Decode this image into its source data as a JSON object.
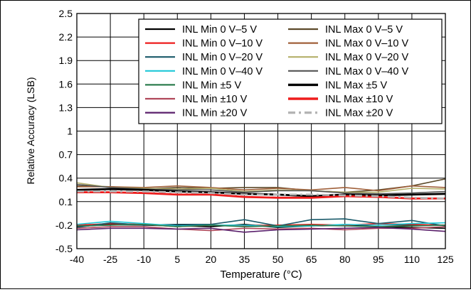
{
  "chart_data": {
    "type": "line",
    "title": "",
    "xlabel": "Temperature (°C)",
    "ylabel": "Relative Accuracy (LSB)",
    "xlim": [
      -40,
      125
    ],
    "ylim": [
      -0.5,
      2.5
    ],
    "x_ticks": [
      -40,
      -25,
      -10,
      5,
      20,
      35,
      50,
      65,
      80,
      95,
      110,
      125
    ],
    "x_tick_labels": [
      "-40",
      "-25",
      "-10",
      "5",
      "20",
      "35",
      "50",
      "65",
      "80",
      "95",
      "110",
      "125"
    ],
    "y_ticks": [
      -0.5,
      -0.2,
      0.1,
      0.4,
      0.7,
      1,
      1.3,
      1.6,
      1.9,
      2.2,
      2.5
    ],
    "y_tick_labels": [
      "-0.5",
      "-0.2",
      "0.1",
      "0.4",
      "0.7",
      "1",
      "1.3",
      "1.6",
      "1.9",
      "2.2",
      "2.5"
    ],
    "grid": true,
    "legend_position": "top-right",
    "x": [
      -40,
      -25,
      -10,
      5,
      20,
      35,
      50,
      65,
      80,
      95,
      110,
      125
    ],
    "series": [
      {
        "name": "INL Min 0 V–5 V",
        "color": "#000000",
        "style": "solid",
        "width": 1.6,
        "values": [
          -0.22,
          -0.19,
          -0.2,
          -0.21,
          -0.22,
          -0.19,
          -0.23,
          -0.21,
          -0.2,
          -0.22,
          -0.23,
          -0.24
        ]
      },
      {
        "name": "INL Min 0 V–10 V",
        "color": "#ee1c1c",
        "style": "solid",
        "width": 1.6,
        "values": [
          -0.2,
          -0.18,
          -0.19,
          -0.22,
          -0.2,
          -0.21,
          -0.2,
          -0.19,
          -0.2,
          -0.18,
          -0.19,
          -0.2
        ]
      },
      {
        "name": "INL Min 0 V–20 V",
        "color": "#1a5a6a",
        "style": "solid",
        "width": 1.6,
        "values": [
          -0.23,
          -0.17,
          -0.2,
          -0.19,
          -0.19,
          -0.13,
          -0.21,
          -0.13,
          -0.12,
          -0.18,
          -0.14,
          -0.21
        ]
      },
      {
        "name": "INL Min 0 V–40 V",
        "color": "#1ec8d8",
        "style": "solid",
        "width": 1.6,
        "values": [
          -0.19,
          -0.15,
          -0.18,
          -0.21,
          -0.2,
          -0.2,
          -0.22,
          -0.21,
          -0.19,
          -0.2,
          -0.18,
          -0.17
        ]
      },
      {
        "name": "INL Min ±5 V",
        "color": "#2e7d4f",
        "style": "solid",
        "width": 1.6,
        "values": [
          -0.21,
          -0.2,
          -0.19,
          -0.22,
          -0.2,
          -0.22,
          -0.21,
          -0.2,
          -0.21,
          -0.22,
          -0.21,
          -0.2
        ]
      },
      {
        "name": "INL Min ±10 V",
        "color": "#b0485a",
        "style": "solid",
        "width": 1.6,
        "values": [
          -0.24,
          -0.22,
          -0.22,
          -0.25,
          -0.27,
          -0.24,
          -0.25,
          -0.24,
          -0.26,
          -0.24,
          -0.24,
          -0.22
        ]
      },
      {
        "name": "INL Min ±20 V",
        "color": "#5a1f6b",
        "style": "solid",
        "width": 1.6,
        "values": [
          -0.26,
          -0.24,
          -0.24,
          -0.25,
          -0.24,
          -0.29,
          -0.26,
          -0.25,
          -0.24,
          -0.23,
          -0.25,
          -0.28
        ]
      },
      {
        "name": "INL Max 0 V–5 V",
        "color": "#5c4a2a",
        "style": "solid",
        "width": 1.6,
        "values": [
          0.3,
          0.29,
          0.26,
          0.28,
          0.27,
          0.28,
          0.28,
          0.24,
          0.22,
          0.25,
          0.3,
          0.39
        ]
      },
      {
        "name": "INL Max 0 V–10 V",
        "color": "#a0603a",
        "style": "solid",
        "width": 1.6,
        "values": [
          0.29,
          0.29,
          0.28,
          0.3,
          0.28,
          0.25,
          0.27,
          0.25,
          0.28,
          0.24,
          0.3,
          0.28
        ]
      },
      {
        "name": "INL Max 0 V–20 V",
        "color": "#b4b06a",
        "style": "solid",
        "width": 1.6,
        "values": [
          0.34,
          0.28,
          0.27,
          0.26,
          0.27,
          0.23,
          0.25,
          0.24,
          0.22,
          0.22,
          0.27,
          0.26
        ]
      },
      {
        "name": "INL Max 0 V–40 V",
        "color": "#555555",
        "style": "solid",
        "width": 1.6,
        "values": [
          0.32,
          0.28,
          0.26,
          0.25,
          0.25,
          0.22,
          0.24,
          0.24,
          0.21,
          0.2,
          0.21,
          0.23
        ]
      },
      {
        "name": "INL Max ±5 V",
        "color": "#000000",
        "style": "solid",
        "width": 2.8,
        "values": [
          0.25,
          0.26,
          0.25,
          0.23,
          0.22,
          0.2,
          0.19,
          0.17,
          0.19,
          0.18,
          0.19,
          0.2
        ]
      },
      {
        "name": "INL Max ±10 V",
        "color": "#ee1c1c",
        "style": "solid",
        "width": 2.8,
        "values": [
          0.22,
          0.22,
          0.21,
          0.19,
          0.19,
          0.16,
          0.15,
          0.15,
          0.17,
          0.16,
          0.14,
          0.14
        ]
      },
      {
        "name": "INL Max ±20 V",
        "color": "#b4b4b4",
        "style": "dashdot",
        "width": 2.8,
        "values": [
          0.23,
          0.23,
          0.23,
          0.22,
          0.21,
          0.19,
          0.19,
          0.19,
          0.18,
          0.17,
          0.15,
          0.14
        ]
      }
    ]
  }
}
